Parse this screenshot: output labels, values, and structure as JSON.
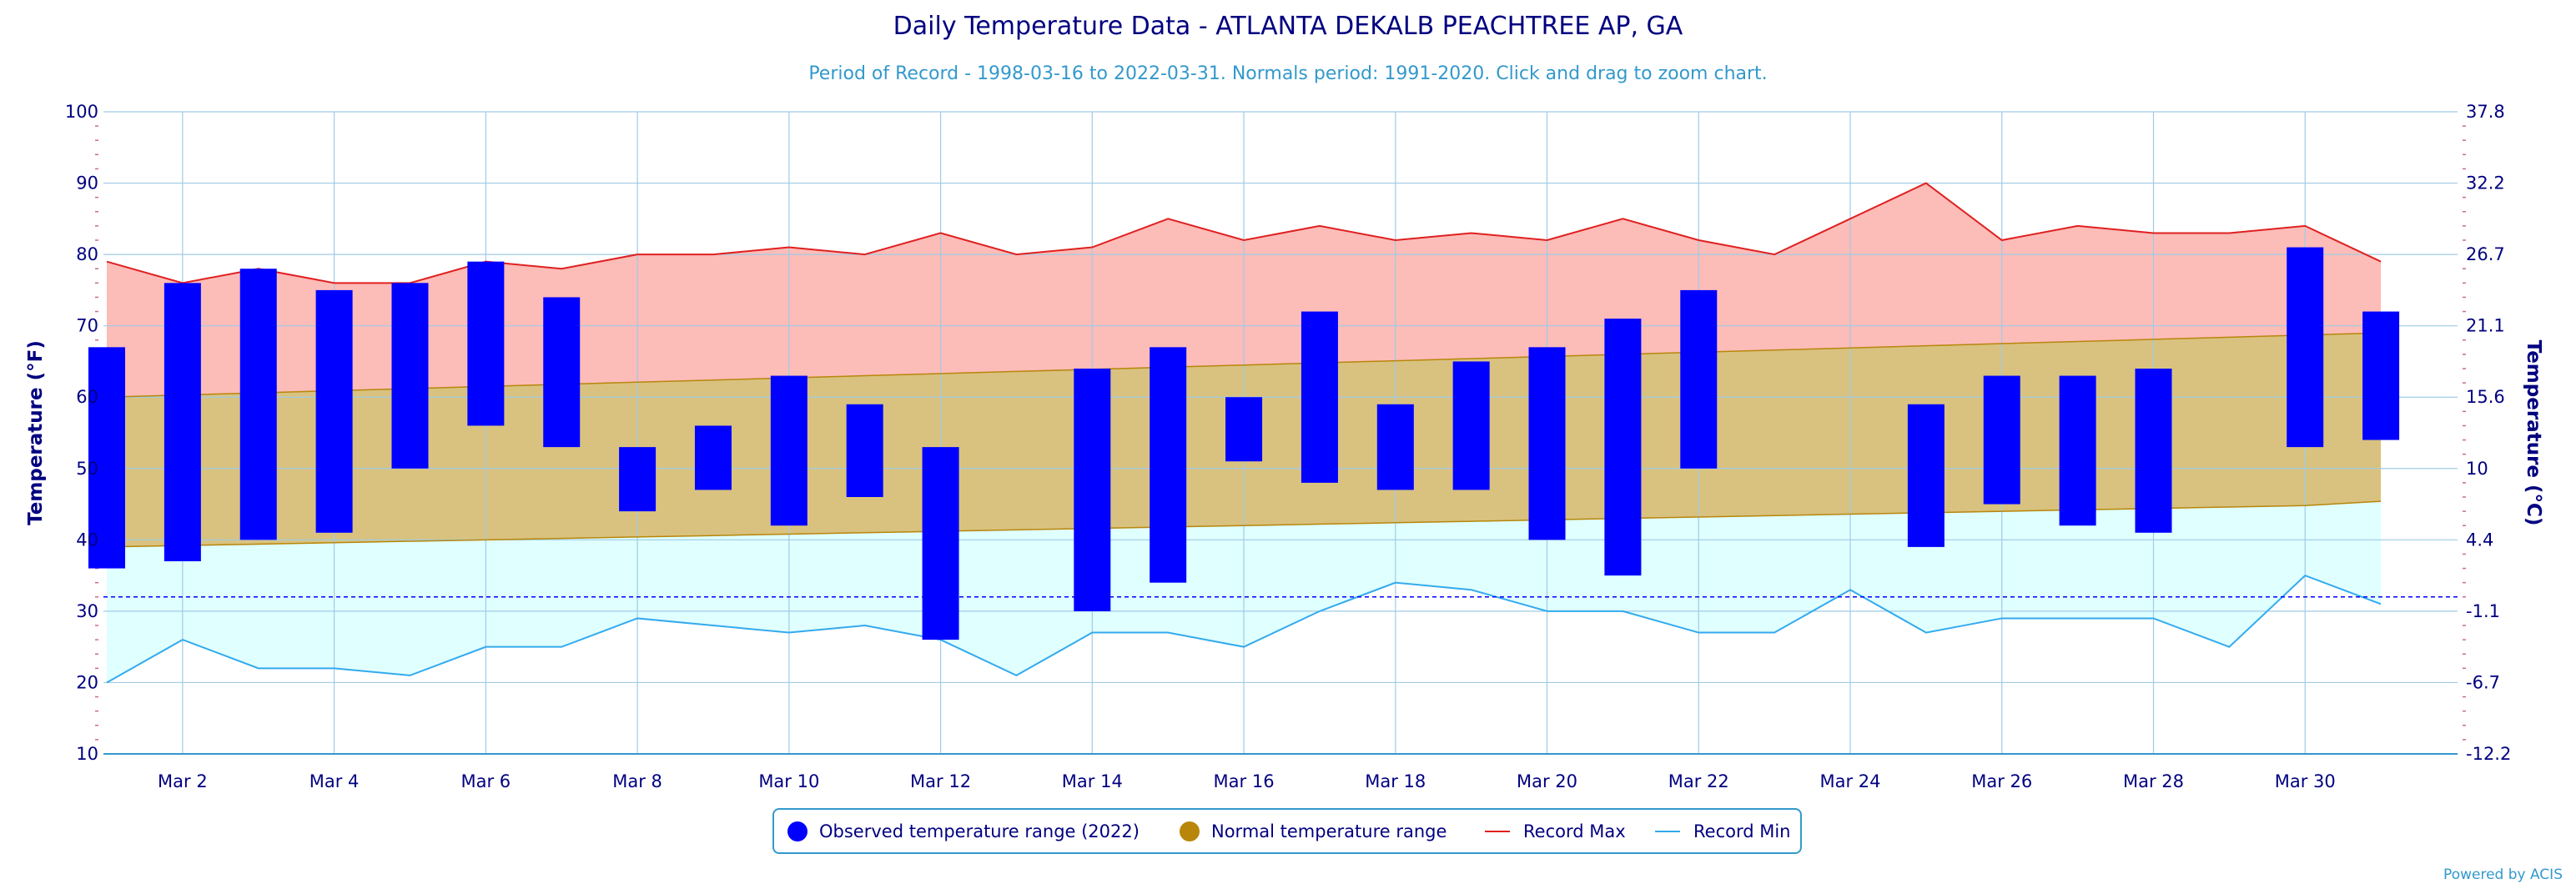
{
  "chart_data": {
    "type": "bar",
    "title": "Daily Temperature Data - ATLANTA DEKALB PEACHTREE AP, GA",
    "subtitle": "Period of Record - 1998-03-16 to 2022-03-31. Normals period: 1991-2020. Click and drag to zoom chart.",
    "ylabel": "Temperature (°F)",
    "ylabel_right": "Temperature (°C)",
    "ylim": [
      10,
      100
    ],
    "y_ticks": [
      "10",
      "20",
      "30",
      "40",
      "50",
      "60",
      "70",
      "80",
      "90",
      "100"
    ],
    "y2_ticks": [
      "-12.2",
      "-6.7",
      "-1.1",
      "4.4",
      "10",
      "15.6",
      "21.1",
      "26.7",
      "32.2",
      "37.8"
    ],
    "x_ticks": [
      "Mar 2",
      "Mar 4",
      "Mar 6",
      "Mar 8",
      "Mar 10",
      "Mar 12",
      "Mar 14",
      "Mar 16",
      "Mar 18",
      "Mar 20",
      "Mar 22",
      "Mar 24",
      "Mar 26",
      "Mar 28",
      "Mar 30"
    ],
    "x_days": [
      1,
      2,
      3,
      4,
      5,
      6,
      7,
      8,
      9,
      10,
      11,
      12,
      13,
      14,
      15,
      16,
      17,
      18,
      19,
      20,
      21,
      22,
      23,
      24,
      25,
      26,
      27,
      28,
      29,
      30,
      31
    ],
    "freezing_line": 32,
    "grid": true,
    "legend_position": "bottom-center",
    "colors": {
      "observed": "#0000ff",
      "normal_fill": "#d9c27f",
      "normal_line": "#b8860b",
      "record_max_fill": "#fcbcb8",
      "record_max_line": "#e02020",
      "record_min_fill": "#e0ffff",
      "record_min_line": "#33aaee",
      "freezing_line": "#0000ff"
    },
    "series": [
      {
        "name": "Observed temperature range (2022)",
        "high": [
          67,
          76,
          78,
          75,
          76,
          79,
          74,
          53,
          56,
          63,
          59,
          53,
          null,
          64,
          67,
          60,
          72,
          59,
          65,
          67,
          71,
          75,
          null,
          null,
          59,
          63,
          63,
          64,
          null,
          81,
          72
        ],
        "low": [
          36,
          37,
          40,
          41,
          50,
          56,
          53,
          44,
          47,
          42,
          46,
          26,
          null,
          30,
          34,
          51,
          48,
          47,
          47,
          40,
          35,
          50,
          null,
          null,
          39,
          45,
          42,
          41,
          null,
          53,
          54
        ]
      },
      {
        "name": "Normal temperature range",
        "high": [
          60,
          60.3,
          60.6,
          60.9,
          61.2,
          61.5,
          61.8,
          62.1,
          62.4,
          62.7,
          63,
          63.3,
          63.6,
          63.9,
          64.2,
          64.5,
          64.8,
          65.1,
          65.4,
          65.7,
          66,
          66.3,
          66.6,
          66.9,
          67.2,
          67.5,
          67.8,
          68.1,
          68.4,
          68.7,
          69
        ],
        "low": [
          39,
          39.2,
          39.4,
          39.6,
          39.8,
          40,
          40.2,
          40.4,
          40.6,
          40.8,
          41,
          41.2,
          41.4,
          41.6,
          41.8,
          42,
          42.2,
          42.4,
          42.6,
          42.8,
          43,
          43.2,
          43.4,
          43.6,
          43.8,
          44,
          44.2,
          44.4,
          44.6,
          44.8,
          45.4
        ]
      },
      {
        "name": "Record Max",
        "values": [
          79,
          76,
          78,
          76,
          76,
          79,
          78,
          80,
          80,
          81,
          80,
          83,
          80,
          81,
          85,
          82,
          84,
          82,
          83,
          82,
          85,
          82,
          80,
          85,
          90,
          82,
          84,
          83,
          83,
          84,
          79
        ]
      },
      {
        "name": "Record Min",
        "values": [
          20,
          26,
          22,
          22,
          21,
          25,
          25,
          29,
          28,
          27,
          28,
          26,
          21,
          27,
          27,
          25,
          30,
          34,
          33,
          30,
          30,
          27,
          27,
          33,
          27,
          29,
          29,
          29,
          25,
          35,
          31
        ]
      }
    ]
  },
  "legend": {
    "items": [
      {
        "label": "Observed temperature range (2022)"
      },
      {
        "label": "Normal temperature range"
      },
      {
        "label": "Record Max"
      },
      {
        "label": "Record Min"
      }
    ]
  },
  "credit": "Powered by ACIS"
}
